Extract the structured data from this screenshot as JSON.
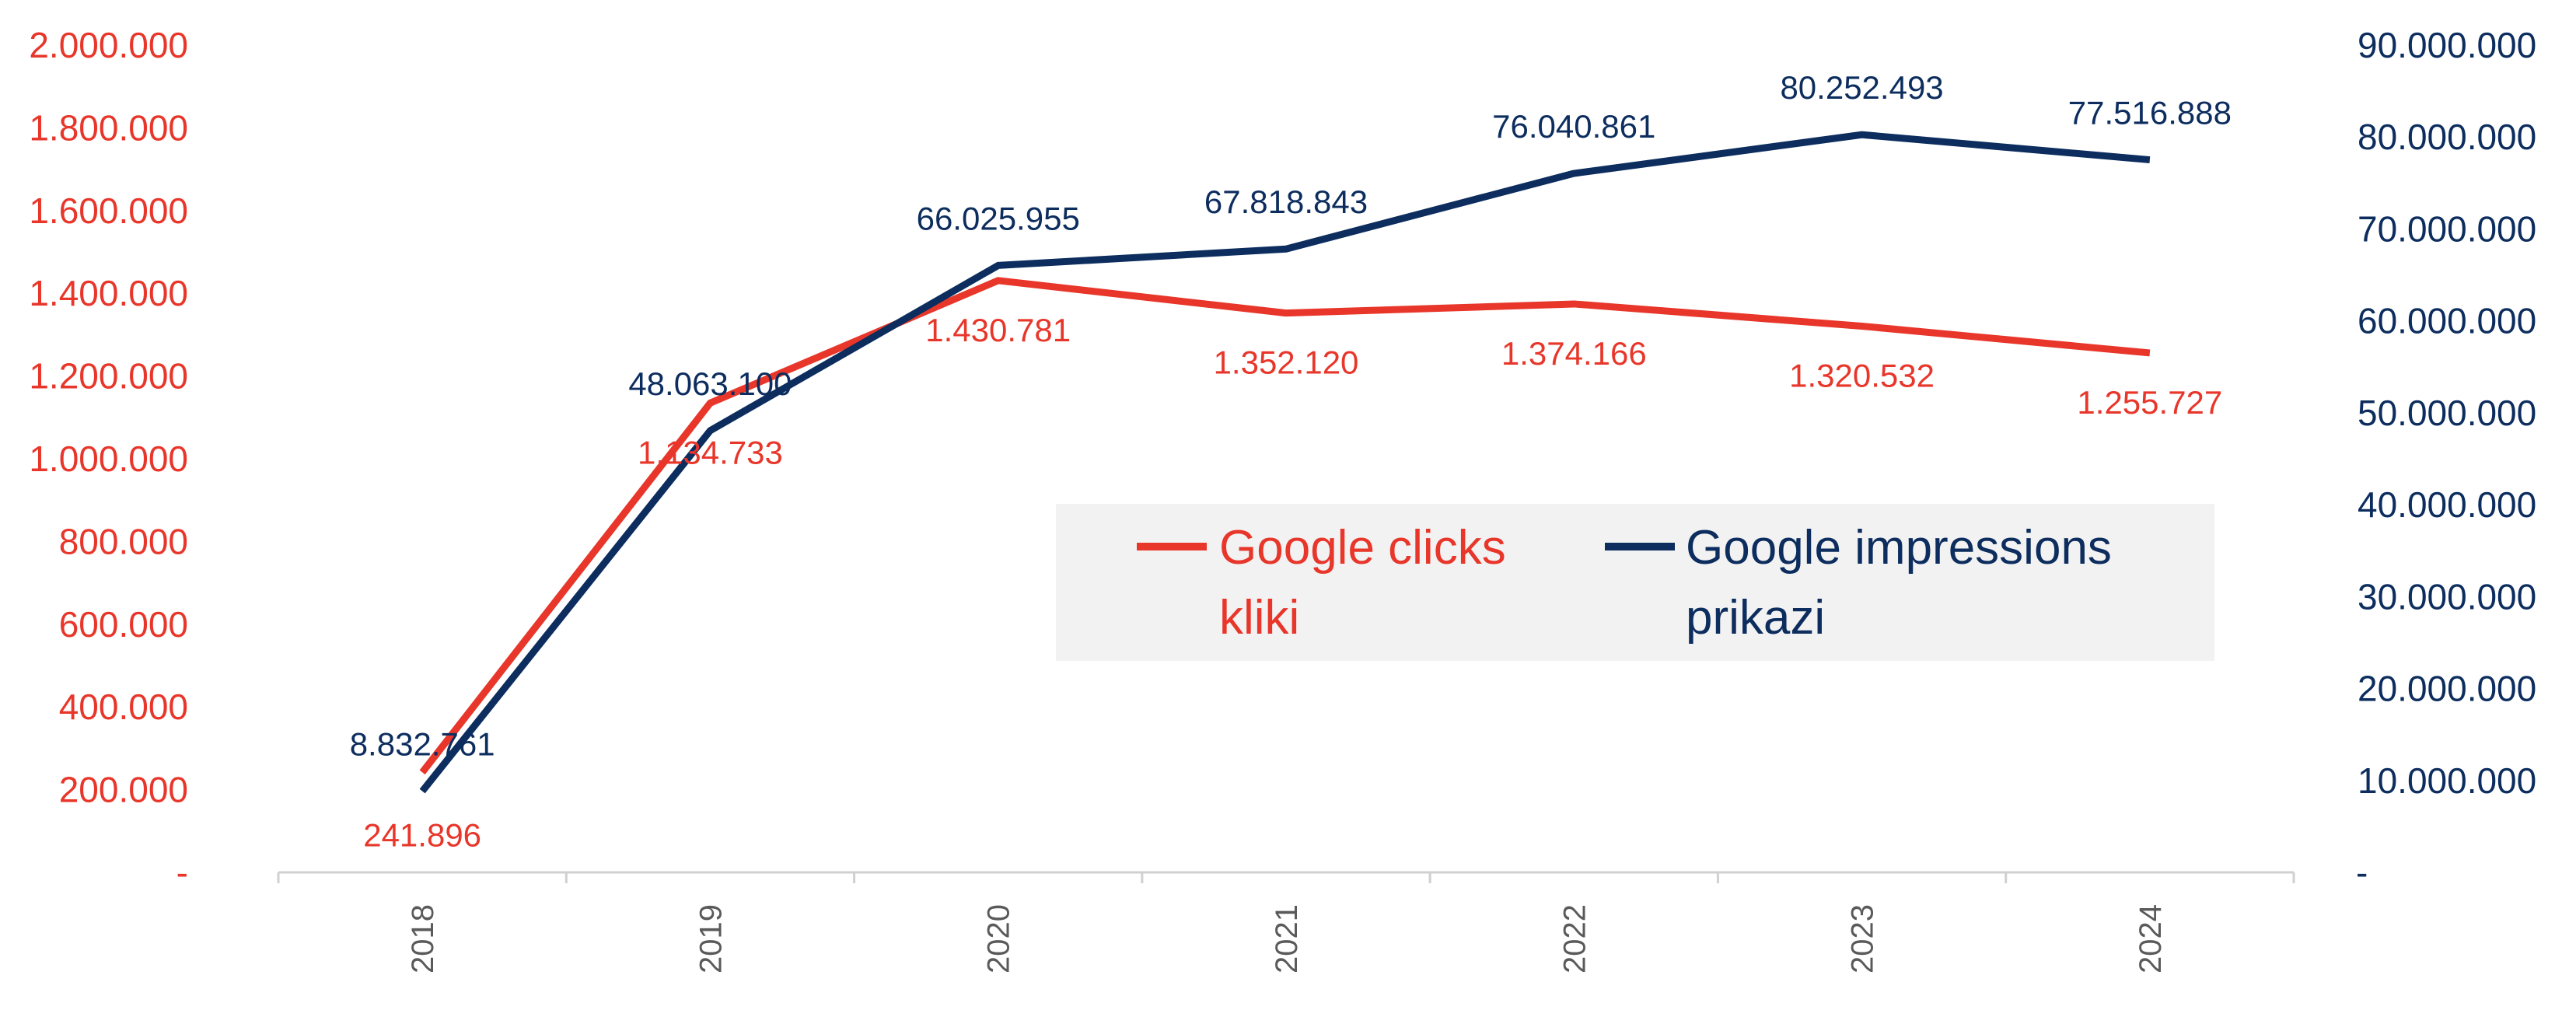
{
  "colors": {
    "clicks": "#e8362a",
    "impressions": "#0c2d5e",
    "legend_bg": "#f2f2f2",
    "axis": "#d0d0d0"
  },
  "chart_data": {
    "type": "line",
    "title": "",
    "xlabel": "",
    "ylabel": "",
    "x": [
      "2018",
      "2019",
      "2020",
      "2021",
      "2022",
      "2023",
      "2024"
    ],
    "y_left": {
      "range": [
        0,
        2000000
      ],
      "ticks": [
        0,
        200000,
        400000,
        600000,
        800000,
        1000000,
        1200000,
        1400000,
        1600000,
        1800000,
        2000000
      ],
      "tick_labels": [
        "-",
        "200.000",
        "400.000",
        "600.000",
        "800.000",
        "1.000.000",
        "1.200.000",
        "1.400.000",
        "1.600.000",
        "1.800.000",
        "2.000.000"
      ]
    },
    "y_right": {
      "range": [
        0,
        90000000
      ],
      "ticks": [
        0,
        10000000,
        20000000,
        30000000,
        40000000,
        50000000,
        60000000,
        70000000,
        80000000,
        90000000
      ],
      "tick_labels": [
        "-",
        "10.000.000",
        "20.000.000",
        "30.000.000",
        "40.000.000",
        "50.000.000",
        "60.000.000",
        "70.000.000",
        "80.000.000",
        "90.000.000"
      ]
    },
    "series": [
      {
        "name": "Google clicks kliki",
        "legend_lines": [
          "Google clicks",
          "kliki"
        ],
        "axis": "left",
        "values": [
          241896,
          1134733,
          1430781,
          1352120,
          1374166,
          1320532,
          1255727
        ],
        "labels": [
          "241.896",
          "1.134.733",
          "1.430.781",
          "1.352.120",
          "1.374.166",
          "1.320.532",
          "1.255.727"
        ]
      },
      {
        "name": "Google impressions prikazi",
        "legend_lines": [
          "Google impressions",
          "prikazi"
        ],
        "axis": "right",
        "values": [
          8832761,
          48063100,
          66025955,
          67818843,
          76040861,
          80252493,
          77516888
        ],
        "labels": [
          "8.832.761",
          "48.063.100",
          "66.025.955",
          "67.818.843",
          "76.040.861",
          "80.252.493",
          "77.516.888"
        ]
      }
    ],
    "grid": false,
    "legend_position": "center-right"
  }
}
